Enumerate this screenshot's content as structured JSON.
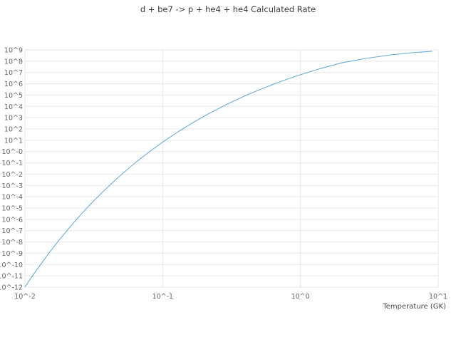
{
  "chart_data": {
    "type": "line",
    "title": "d + be7 -> p + he4 + he4 Calculated Rate",
    "xlabel": "Temperature (GK)",
    "ylabel": "",
    "xlim_log": [
      -2,
      1
    ],
    "ylim_log": [
      -12,
      9
    ],
    "x_ticks": [
      "10^-2",
      "10^-1",
      "10^0",
      "10^1"
    ],
    "x_ticks_log": [
      -2,
      -1,
      0,
      1
    ],
    "y_ticks": [
      "10^9",
      "10^8",
      "10^7",
      "10^6",
      "10^5",
      "10^4",
      "10^3",
      "10^2",
      "10^1",
      "10^-0",
      "10^-1",
      "10^-2",
      "10^-3",
      "10^-4",
      "10^-5",
      "10^-6",
      "10^-7",
      "10^-8",
      "10^-9",
      "10^-10",
      "10^-11",
      "10^-12"
    ],
    "y_ticks_log": [
      9,
      8,
      7,
      6,
      5,
      4,
      3,
      2,
      1,
      0,
      -1,
      -2,
      -3,
      -4,
      -5,
      -6,
      -7,
      -8,
      -9,
      -10,
      -11,
      -12
    ],
    "grid": true,
    "grid_color": "#e7e7e7",
    "line_color": "#6aaed6",
    "series": [
      {
        "name": "calculated rate",
        "x_gk": [
          0.01,
          0.011,
          0.012,
          0.013,
          0.015,
          0.017,
          0.02,
          0.023,
          0.027,
          0.032,
          0.038,
          0.045,
          0.055,
          0.065,
          0.08,
          0.1,
          0.13,
          0.17,
          0.22,
          0.3,
          0.4,
          0.55,
          0.75,
          1.0,
          1.4,
          2.0,
          3.0,
          4.5,
          6.5,
          9.0
        ],
        "y_log10_rate": [
          -11.99,
          -11.24,
          -10.58,
          -9.99,
          -8.96,
          -8.11,
          -7.05,
          -6.18,
          -5.24,
          -4.29,
          -3.39,
          -2.55,
          -1.61,
          -0.87,
          -0.02,
          0.84,
          1.77,
          2.64,
          3.41,
          4.25,
          4.96,
          5.66,
          6.28,
          6.8,
          7.35,
          7.86,
          8.25,
          8.55,
          8.75,
          8.88
        ]
      }
    ]
  }
}
